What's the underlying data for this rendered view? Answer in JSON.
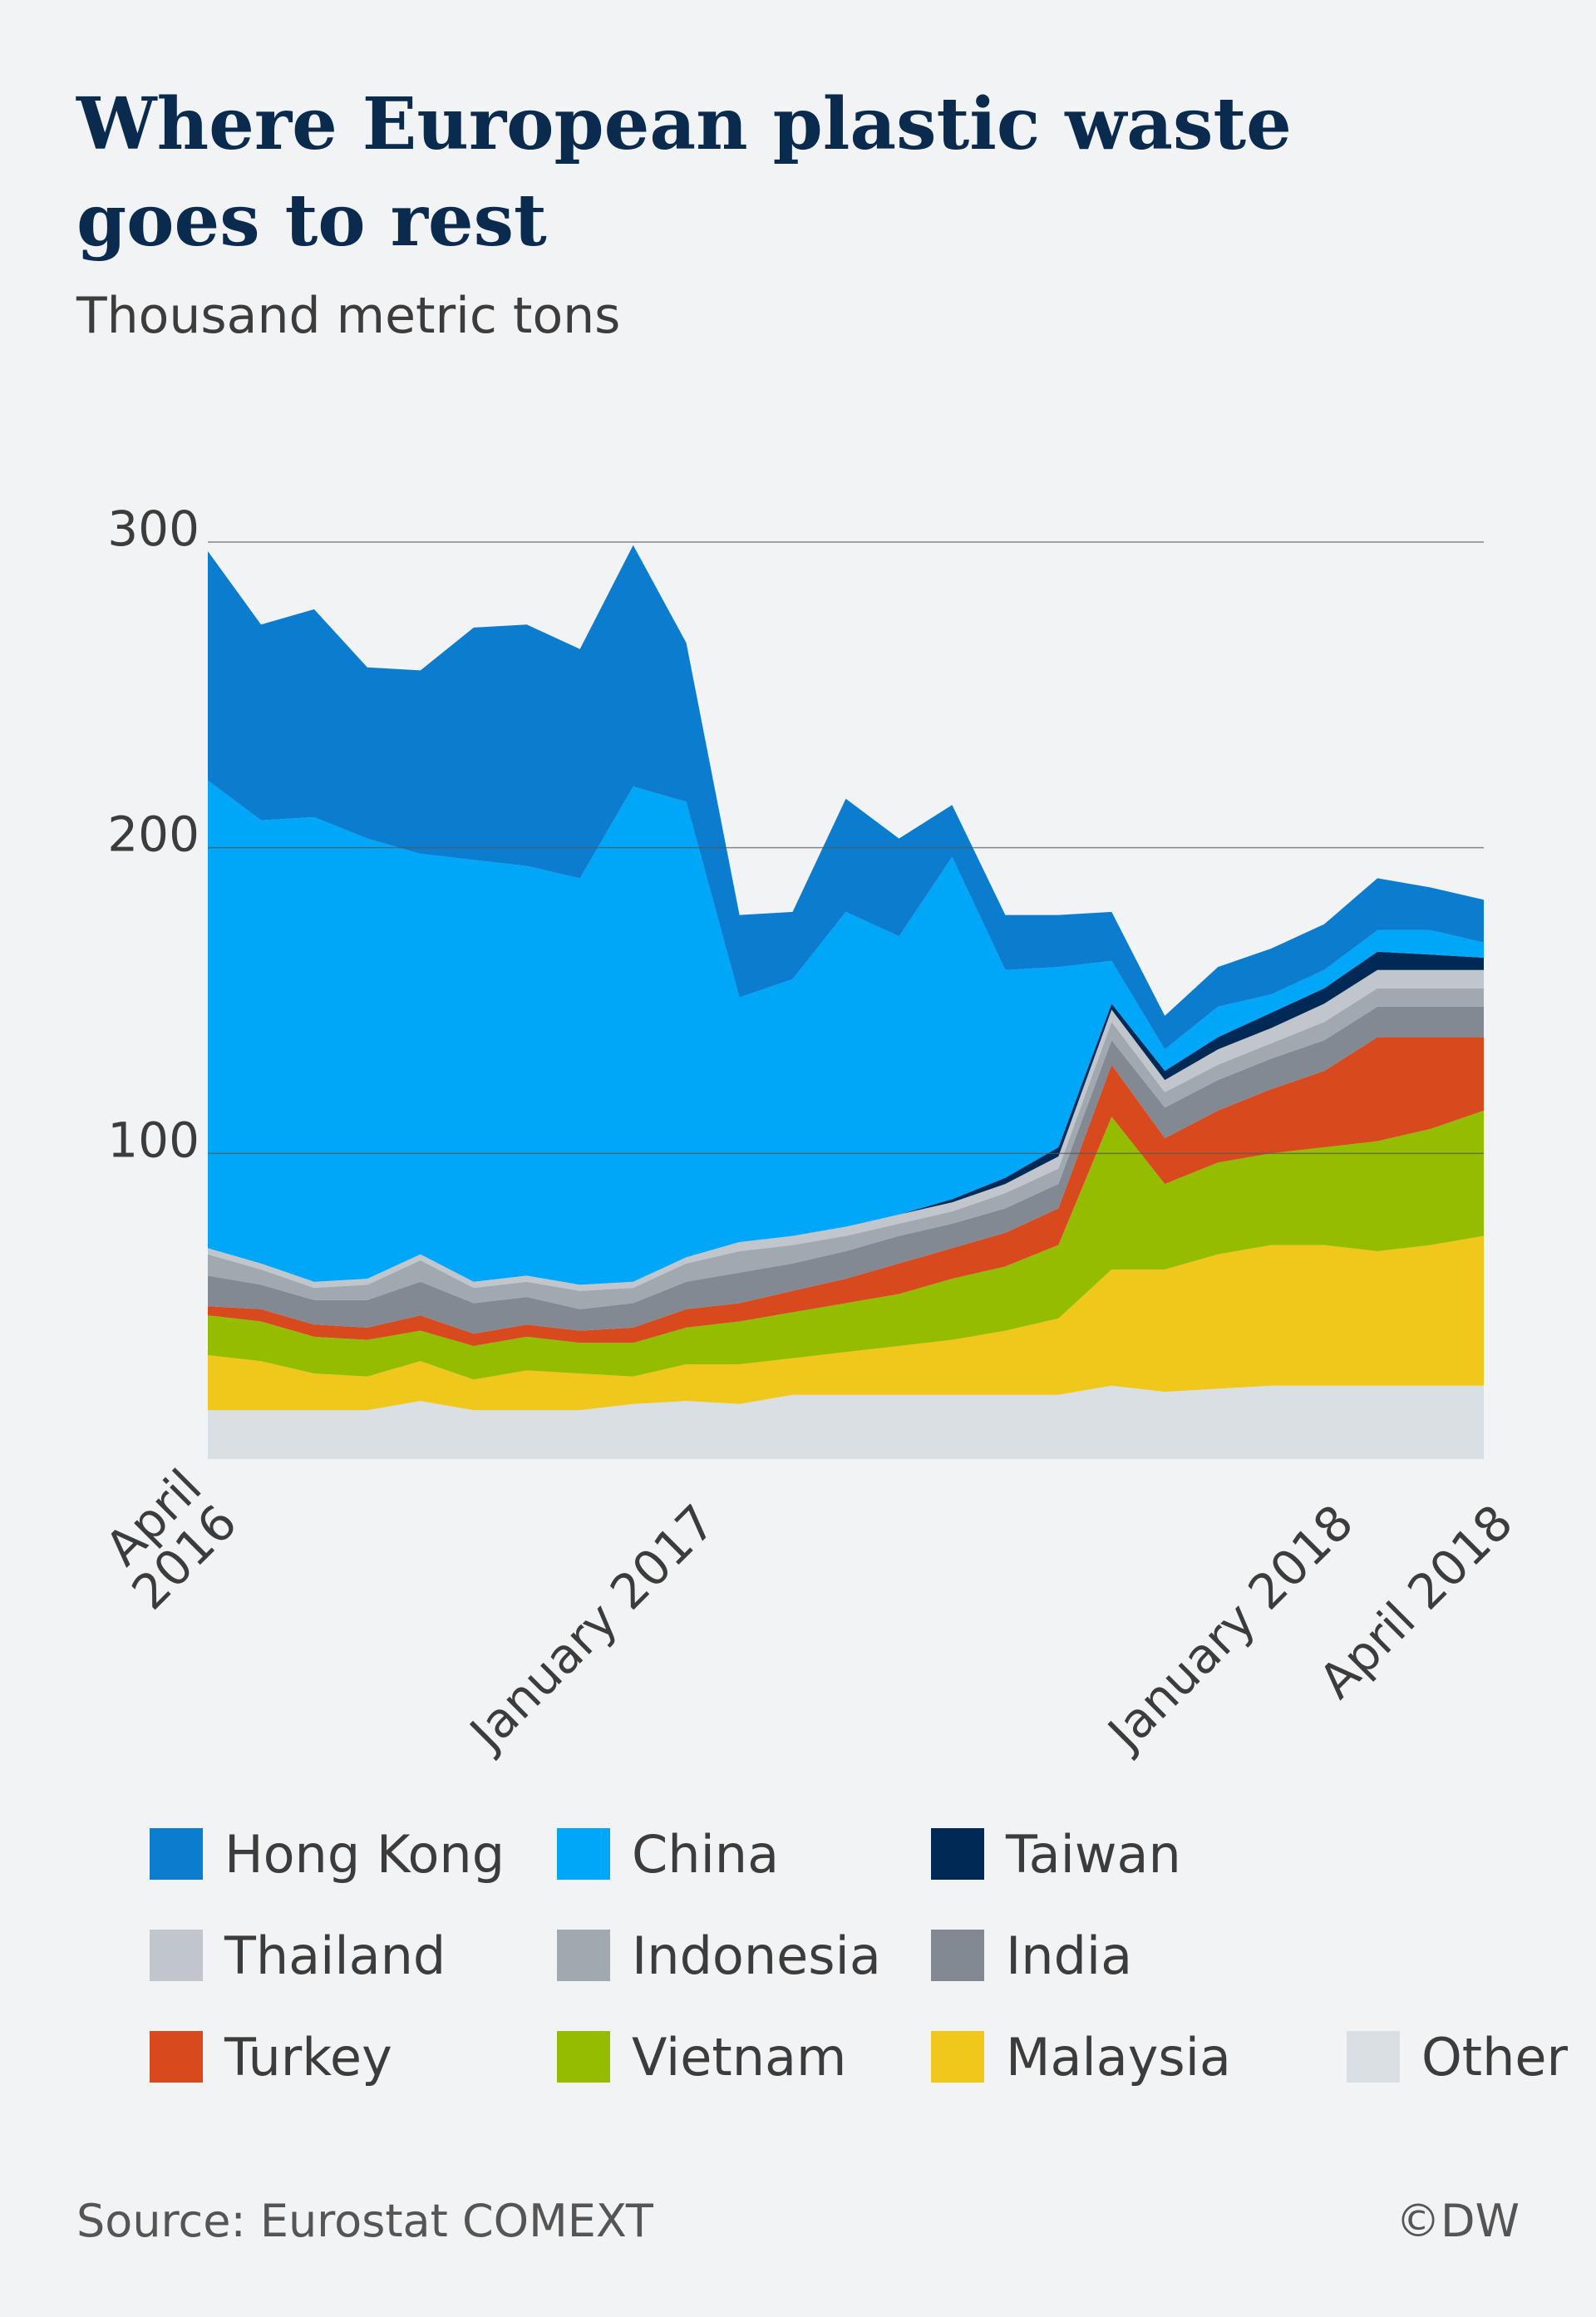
{
  "header": {
    "title": "Where European plastic waste goes to rest",
    "subtitle": "Thousand metric tons"
  },
  "footer": {
    "source": "Source: Eurostat COMEXT",
    "credit": "©DW"
  },
  "colors": {
    "Hong Kong": "#0c7ccf",
    "China": "#00a6f7",
    "Taiwan": "#002a55",
    "Thailand": "#c0c6cb",
    "Indonesia": "#a0a8b0",
    "India": "#828992",
    "Turkey": "#d84a1d",
    "Vietnam": "#94bd00",
    "Malaysia": "#efc81b",
    "Other": "#dadfe3"
  },
  "chart_data": {
    "type": "area",
    "stacked": true,
    "title": "Where European plastic waste goes to rest",
    "ylabel": "Thousand metric tons",
    "ylim": [
      0,
      300
    ],
    "yticks": [
      100,
      200,
      300
    ],
    "grid": true,
    "x_start": "April 2016",
    "x_end": "April 2018",
    "xtick_labels": [
      {
        "month_index": 0,
        "lines": [
          "April",
          "2016"
        ]
      },
      {
        "month_index": 9,
        "lines": [
          "January 2017"
        ]
      },
      {
        "month_index": 21,
        "lines": [
          "January 2018"
        ]
      },
      {
        "month_index": 24,
        "lines": [
          "April 2018"
        ]
      }
    ],
    "x": [
      0,
      1,
      2,
      3,
      4,
      5,
      6,
      7,
      8,
      9,
      10,
      11,
      12,
      13,
      14,
      15,
      16,
      17,
      18,
      19,
      20,
      21,
      22,
      23,
      24
    ],
    "series": [
      {
        "name": "Other",
        "values": [
          16,
          16,
          16,
          16,
          19,
          16,
          16,
          16,
          18,
          19,
          18,
          21,
          21,
          21,
          21,
          21,
          21,
          24,
          22,
          23,
          24,
          24,
          24,
          24,
          24
        ]
      },
      {
        "name": "Malaysia",
        "values": [
          18,
          16,
          12,
          11,
          13,
          10,
          13,
          12,
          9,
          12,
          13,
          12,
          14,
          16,
          18,
          21,
          25,
          38,
          40,
          44,
          46,
          46,
          44,
          46,
          49
        ]
      },
      {
        "name": "Vietnam",
        "values": [
          13,
          13,
          12,
          12,
          10,
          11,
          11,
          10,
          11,
          12,
          14,
          15,
          16,
          17,
          20,
          21,
          24,
          50,
          28,
          30,
          30,
          32,
          36,
          38,
          41
        ]
      },
      {
        "name": "Turkey",
        "values": [
          3,
          4,
          4,
          4,
          5,
          4,
          4,
          4,
          5,
          6,
          6,
          7,
          8,
          10,
          10,
          11,
          12,
          17,
          15,
          17,
          21,
          25,
          34,
          30,
          24
        ]
      },
      {
        "name": "India",
        "values": [
          10,
          8,
          8,
          9,
          11,
          10,
          9,
          7,
          8,
          9,
          10,
          9,
          9,
          9,
          8,
          8,
          8,
          8,
          10,
          10,
          10,
          10,
          10,
          10,
          10
        ]
      },
      {
        "name": "Indonesia",
        "values": [
          7,
          5,
          4,
          5,
          7,
          5,
          5,
          6,
          5,
          6,
          7,
          6,
          5,
          4,
          4,
          5,
          5,
          6,
          5,
          5,
          5,
          6,
          6,
          6,
          6
        ]
      },
      {
        "name": "Thailand",
        "values": [
          2,
          2,
          2,
          2,
          2,
          2,
          2,
          2,
          2,
          2,
          3,
          3,
          3,
          3,
          3,
          3,
          4,
          4,
          4,
          5,
          5,
          6,
          6,
          6,
          6
        ]
      },
      {
        "name": "Taiwan",
        "values": [
          0,
          0,
          0,
          0,
          0,
          0,
          0,
          0,
          0,
          0,
          0,
          0,
          0,
          0,
          1,
          2,
          3,
          2,
          3,
          4,
          5,
          5,
          6,
          5,
          4
        ]
      },
      {
        "name": "China",
        "values": [
          153,
          145,
          152,
          144,
          131,
          138,
          134,
          133,
          162,
          149,
          80,
          84,
          103,
          91,
          112,
          68,
          59,
          14,
          7,
          10,
          6,
          6,
          7,
          8,
          5
        ]
      },
      {
        "name": "Hong Kong",
        "values": [
          75,
          64,
          68,
          56,
          60,
          76,
          79,
          75,
          79,
          52,
          27,
          22,
          37,
          32,
          17,
          18,
          17,
          16,
          11,
          13,
          15,
          15,
          17,
          14,
          14
        ]
      }
    ]
  },
  "legend": {
    "items": [
      {
        "key": "Hong Kong",
        "label": "Hong Kong"
      },
      {
        "key": "China",
        "label": "China"
      },
      {
        "key": "Taiwan",
        "label": "Taiwan"
      },
      {
        "key": "Thailand",
        "label": "Thailand"
      },
      {
        "key": "Indonesia",
        "label": "Indonesia"
      },
      {
        "key": "India",
        "label": "India"
      },
      {
        "key": "Turkey",
        "label": "Turkey"
      },
      {
        "key": "Vietnam",
        "label": "Vietnam"
      },
      {
        "key": "Malaysia",
        "label": "Malaysia"
      },
      {
        "key": "Other",
        "label": "Other"
      }
    ]
  }
}
